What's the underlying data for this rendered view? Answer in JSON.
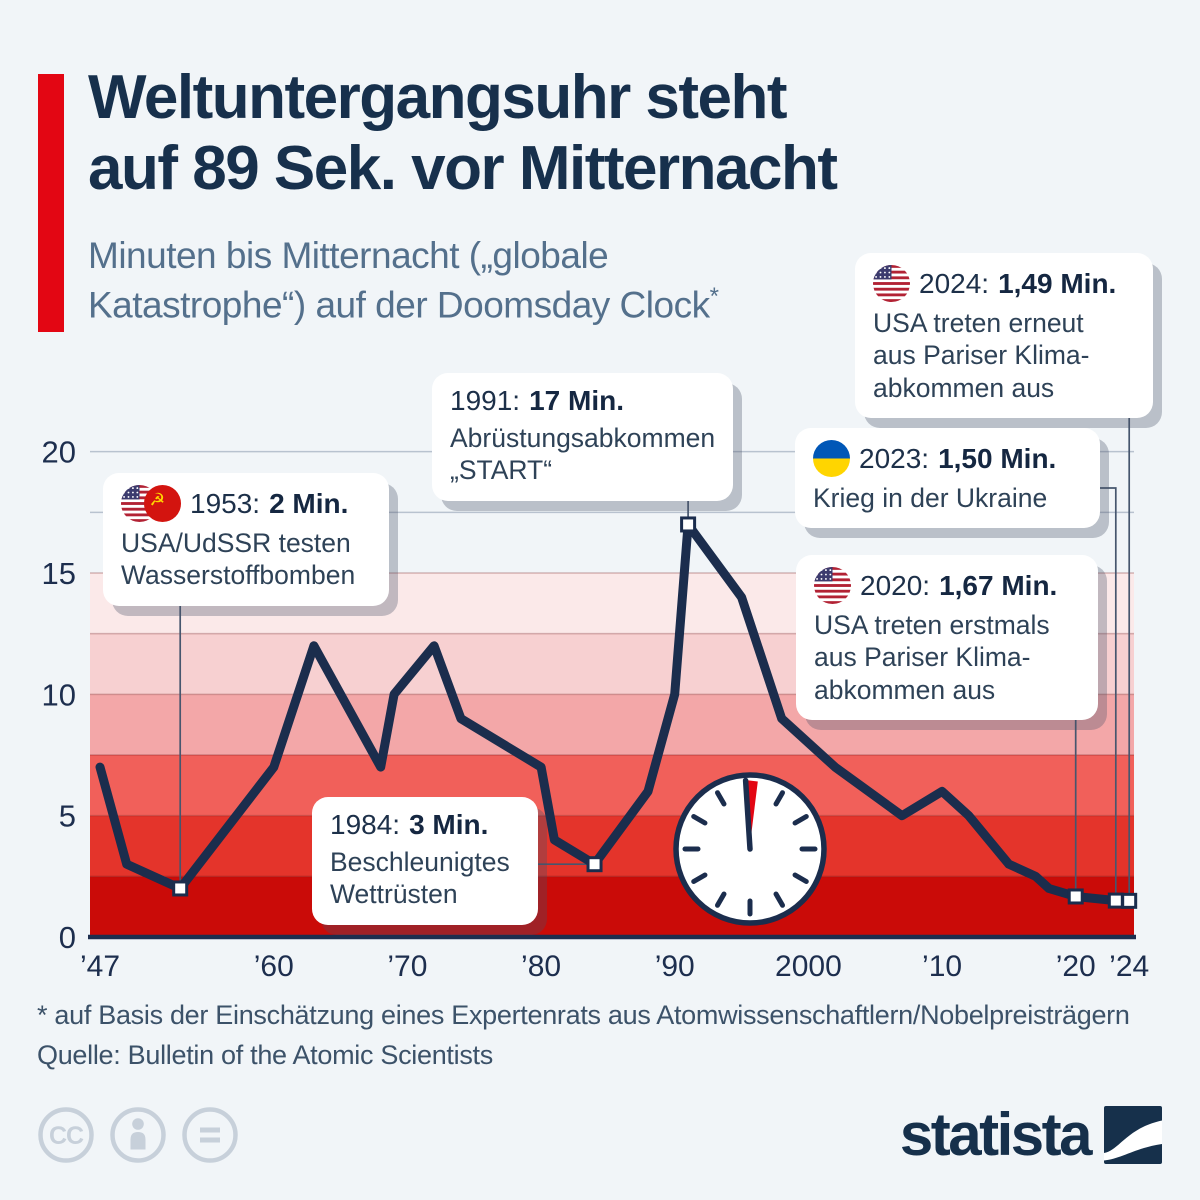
{
  "header": {
    "title_line1": "Weltuntergangsuhr steht",
    "title_line2": "auf 89 Sek. vor Mitternacht",
    "subtitle_line1": "Minuten bis Mitternacht („globale",
    "subtitle_line2": "Katastrophe“) auf der Doomsday Clock",
    "footnote_mark": "*"
  },
  "chart_data": {
    "type": "line",
    "title": "Minuten bis Mitternacht („globale Katastrophe“) auf der Doomsday Clock",
    "x": [
      1947,
      1949,
      1953,
      1960,
      1963,
      1968,
      1969,
      1972,
      1974,
      1980,
      1981,
      1984,
      1988,
      1990,
      1991,
      1995,
      1998,
      2002,
      2007,
      2010,
      2012,
      2015,
      2017,
      2018,
      2020,
      2023,
      2024
    ],
    "y": [
      7,
      3,
      2,
      7,
      12,
      7,
      10,
      12,
      9,
      7,
      4,
      3,
      6,
      10,
      17,
      14,
      9,
      7,
      5,
      6,
      5,
      3,
      2.5,
      2,
      1.67,
      1.5,
      1.49
    ],
    "ylim": [
      0,
      20
    ],
    "xlim": [
      1947,
      2024
    ],
    "grid": true,
    "grid_step": 2.5,
    "xticks": {
      "values": [
        1947,
        1960,
        1970,
        1980,
        1990,
        2000,
        2010,
        2020,
        2024
      ],
      "labels": [
        "’47",
        "’60",
        "’70",
        "’80",
        "’90",
        "2000",
        "’10",
        "’20",
        "’24"
      ]
    },
    "yticks": {
      "values": [
        0,
        5,
        10,
        15,
        20
      ],
      "labels": [
        "0",
        "5",
        "10",
        "15",
        "20"
      ]
    },
    "marker_years": [
      1953,
      1984,
      1991,
      2020,
      2023,
      2024
    ],
    "bands": {
      "min": 0,
      "max": 15,
      "step": 2.5,
      "colors_bottom_to_top": [
        "#ca0b08",
        "#e4342b",
        "#f1605a",
        "#f3a7a8",
        "#f7d0d1",
        "#fbe9e9"
      ]
    },
    "line_color": "#1b2d4d"
  },
  "callouts": [
    {
      "id": "1953",
      "year_label": "1953:",
      "value_label": "2 Min.",
      "flags": [
        "us",
        "ussr"
      ],
      "body_lines": [
        "USA/UdSSR testen",
        "Wasserstoffbomben"
      ]
    },
    {
      "id": "1991",
      "year_label": "1991:",
      "value_label": "17 Min.",
      "flags": [],
      "body_lines": [
        "Abrüstungsabkommen",
        "„START“"
      ]
    },
    {
      "id": "1984",
      "year_label": "1984:",
      "value_label": "3 Min.",
      "flags": [],
      "body_lines": [
        "Beschleunigtes",
        "Wettrüsten"
      ]
    },
    {
      "id": "2024",
      "year_label": "2024:",
      "value_label": "1,49 Min.",
      "flags": [
        "us"
      ],
      "body_lines": [
        "USA treten erneut",
        "aus Pariser Klima-",
        "abkommen aus"
      ]
    },
    {
      "id": "2023",
      "year_label": "2023:",
      "value_label": "1,50 Min.",
      "flags": [
        "ua"
      ],
      "body_lines": [
        "Krieg in der Ukraine"
      ]
    },
    {
      "id": "2020",
      "year_label": "2020:",
      "value_label": "1,67 Min.",
      "flags": [
        "us"
      ],
      "body_lines": [
        "USA treten erstmals",
        "aus Pariser Klima-",
        "abkommen aus"
      ]
    }
  ],
  "footer": {
    "footnote": "* auf Basis der Einschätzung eines Expertenrats aus Atomwissenschaftlern/Nobelpreisträgern",
    "source": "Quelle: Bulletin of the Atomic Scientists"
  },
  "branding": {
    "logo_text": "statista",
    "license_icons": [
      "cc-icon",
      "by-icon",
      "nd-icon"
    ]
  },
  "icons": {
    "clock": "doomsday-clock-near-midnight",
    "flags": [
      "flag-us-icon",
      "flag-ussr-icon",
      "flag-ukraine-icon"
    ],
    "logo_mark": "statista-logo-square"
  },
  "colors": {
    "background": "#f1f5f8",
    "accent_red": "#e30613",
    "navy": "#1b2d4d",
    "subtitle": "#54708c",
    "grid": "#b8c2cf",
    "footer_text": "#3c5269",
    "license_gray": "#c7d0da"
  }
}
